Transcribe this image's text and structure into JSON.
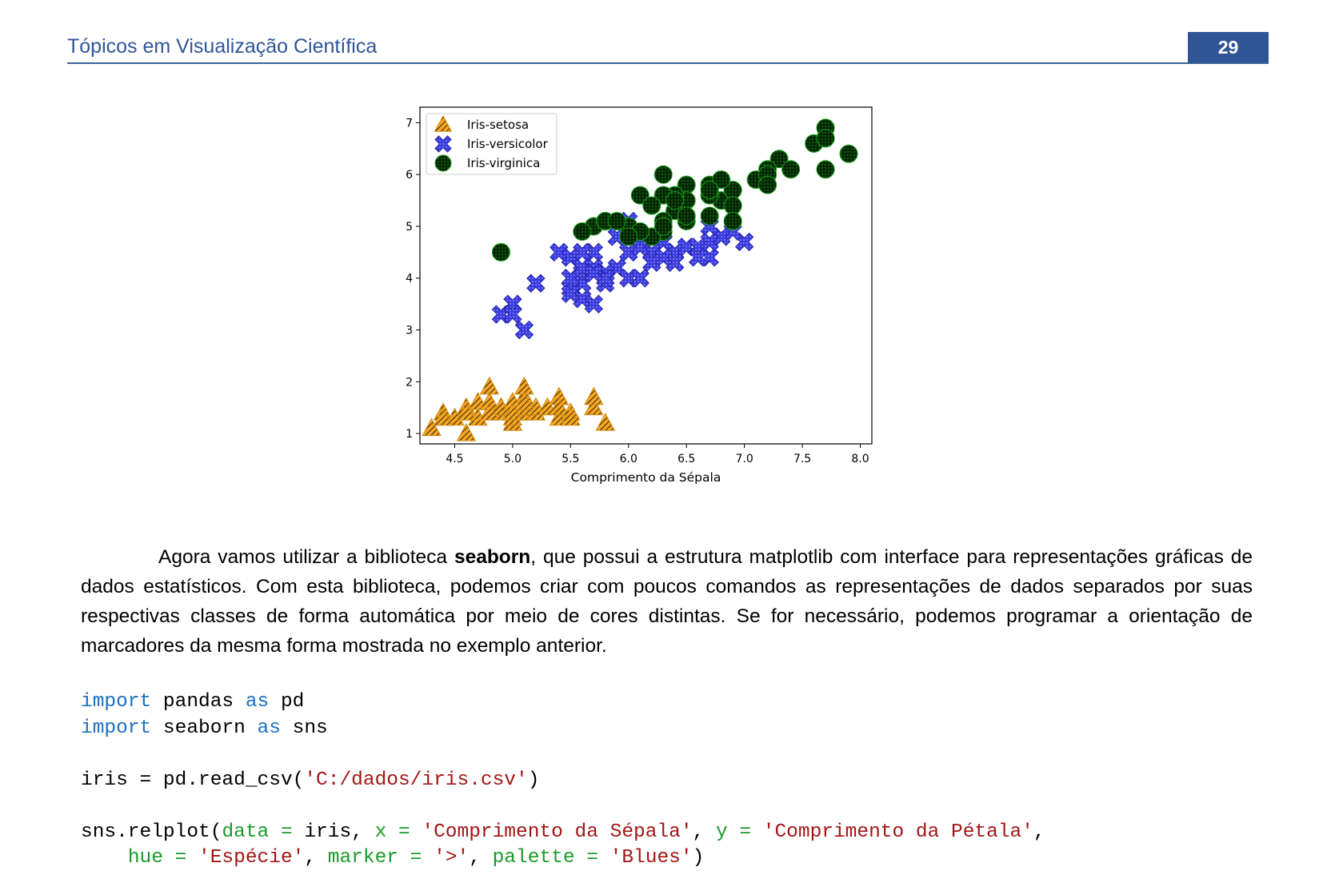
{
  "header": {
    "title": "Tópicos em Visualização Científica",
    "page_number": "29",
    "accent_color": "#2f5597"
  },
  "chart_data": {
    "type": "scatter",
    "xlabel": "Comprimento da Sépala",
    "ylabel": "Comprimento da Pétala",
    "xlim": [
      4.2,
      8.1
    ],
    "ylim": [
      0.8,
      7.3
    ],
    "xticks": [
      "4.5",
      "5.0",
      "5.5",
      "6.0",
      "6.5",
      "7.0",
      "7.5",
      "8.0"
    ],
    "yticks": [
      "1",
      "2",
      "3",
      "4",
      "5",
      "6",
      "7"
    ],
    "grid": false,
    "legend_placement": "upper-left",
    "series": [
      {
        "name": "Iris-setosa",
        "marker": "triangle",
        "color": "#f5a623",
        "points": [
          [
            5.1,
            1.4
          ],
          [
            4.9,
            1.4
          ],
          [
            4.7,
            1.3
          ],
          [
            4.6,
            1.5
          ],
          [
            5.0,
            1.4
          ],
          [
            5.4,
            1.7
          ],
          [
            4.6,
            1.4
          ],
          [
            5.0,
            1.5
          ],
          [
            4.4,
            1.4
          ],
          [
            4.9,
            1.5
          ],
          [
            5.4,
            1.5
          ],
          [
            4.8,
            1.6
          ],
          [
            4.8,
            1.4
          ],
          [
            4.3,
            1.1
          ],
          [
            5.8,
            1.2
          ],
          [
            5.7,
            1.5
          ],
          [
            5.4,
            1.3
          ],
          [
            5.1,
            1.4
          ],
          [
            5.7,
            1.7
          ],
          [
            5.1,
            1.5
          ],
          [
            5.4,
            1.7
          ],
          [
            5.1,
            1.5
          ],
          [
            4.6,
            1.0
          ],
          [
            5.1,
            1.7
          ],
          [
            4.8,
            1.9
          ],
          [
            5.0,
            1.6
          ],
          [
            5.0,
            1.6
          ],
          [
            5.2,
            1.5
          ],
          [
            5.2,
            1.4
          ],
          [
            4.7,
            1.6
          ],
          [
            4.8,
            1.6
          ],
          [
            5.4,
            1.5
          ],
          [
            5.2,
            1.5
          ],
          [
            5.5,
            1.4
          ],
          [
            4.9,
            1.5
          ],
          [
            5.0,
            1.2
          ],
          [
            5.5,
            1.3
          ],
          [
            4.9,
            1.5
          ],
          [
            4.4,
            1.3
          ],
          [
            5.1,
            1.5
          ],
          [
            5.0,
            1.3
          ],
          [
            4.5,
            1.3
          ],
          [
            4.4,
            1.3
          ],
          [
            5.0,
            1.6
          ],
          [
            5.1,
            1.9
          ],
          [
            4.8,
            1.4
          ],
          [
            5.1,
            1.6
          ],
          [
            4.6,
            1.4
          ],
          [
            5.3,
            1.5
          ],
          [
            5.0,
            1.4
          ]
        ]
      },
      {
        "name": "Iris-versicolor",
        "marker": "x",
        "color": "#3a3ae0",
        "points": [
          [
            7.0,
            4.7
          ],
          [
            6.4,
            4.5
          ],
          [
            6.9,
            4.9
          ],
          [
            5.5,
            4.0
          ],
          [
            6.5,
            4.6
          ],
          [
            5.7,
            4.5
          ],
          [
            6.3,
            4.7
          ],
          [
            4.9,
            3.3
          ],
          [
            6.6,
            4.6
          ],
          [
            5.2,
            3.9
          ],
          [
            5.0,
            3.5
          ],
          [
            5.9,
            4.2
          ],
          [
            6.0,
            4.0
          ],
          [
            6.1,
            4.7
          ],
          [
            5.6,
            3.6
          ],
          [
            6.7,
            4.4
          ],
          [
            5.6,
            4.5
          ],
          [
            5.8,
            4.1
          ],
          [
            6.2,
            4.5
          ],
          [
            5.6,
            3.9
          ],
          [
            5.9,
            4.8
          ],
          [
            6.1,
            4.0
          ],
          [
            6.3,
            4.9
          ],
          [
            6.1,
            4.7
          ],
          [
            6.4,
            4.3
          ],
          [
            6.6,
            4.4
          ],
          [
            6.8,
            4.8
          ],
          [
            6.7,
            5.0
          ],
          [
            6.0,
            4.5
          ],
          [
            5.7,
            3.5
          ],
          [
            5.5,
            3.8
          ],
          [
            5.5,
            3.7
          ],
          [
            5.8,
            3.9
          ],
          [
            6.0,
            5.1
          ],
          [
            5.4,
            4.5
          ],
          [
            6.0,
            4.5
          ],
          [
            6.7,
            4.7
          ],
          [
            6.3,
            4.4
          ],
          [
            5.6,
            4.1
          ],
          [
            5.5,
            4.0
          ],
          [
            5.5,
            4.4
          ],
          [
            6.1,
            4.6
          ],
          [
            5.8,
            4.0
          ],
          [
            5.0,
            3.3
          ],
          [
            5.6,
            4.2
          ],
          [
            5.7,
            4.2
          ],
          [
            5.7,
            4.2
          ],
          [
            6.2,
            4.3
          ],
          [
            5.1,
            3.0
          ],
          [
            5.7,
            4.1
          ]
        ]
      },
      {
        "name": "Iris-virginica",
        "marker": "circle",
        "color": "#0a6b0a",
        "points": [
          [
            6.3,
            6.0
          ],
          [
            5.8,
            5.1
          ],
          [
            7.1,
            5.9
          ],
          [
            6.3,
            5.6
          ],
          [
            6.5,
            5.8
          ],
          [
            7.6,
            6.6
          ],
          [
            4.9,
            4.5
          ],
          [
            7.3,
            6.3
          ],
          [
            6.7,
            5.8
          ],
          [
            7.2,
            6.1
          ],
          [
            6.5,
            5.1
          ],
          [
            6.4,
            5.3
          ],
          [
            6.8,
            5.5
          ],
          [
            5.7,
            5.0
          ],
          [
            5.8,
            5.1
          ],
          [
            6.4,
            5.3
          ],
          [
            6.5,
            5.5
          ],
          [
            7.7,
            6.7
          ],
          [
            7.7,
            6.9
          ],
          [
            6.0,
            5.0
          ],
          [
            6.9,
            5.7
          ],
          [
            5.6,
            4.9
          ],
          [
            7.7,
            6.7
          ],
          [
            6.3,
            4.9
          ],
          [
            6.7,
            5.7
          ],
          [
            7.2,
            6.0
          ],
          [
            6.2,
            4.8
          ],
          [
            6.1,
            4.9
          ],
          [
            6.4,
            5.6
          ],
          [
            7.2,
            5.8
          ],
          [
            7.4,
            6.1
          ],
          [
            7.9,
            6.4
          ],
          [
            6.4,
            5.6
          ],
          [
            6.3,
            5.1
          ],
          [
            6.1,
            5.6
          ],
          [
            7.7,
            6.1
          ],
          [
            6.3,
            5.6
          ],
          [
            6.4,
            5.5
          ],
          [
            6.0,
            4.8
          ],
          [
            6.9,
            5.4
          ],
          [
            6.7,
            5.6
          ],
          [
            6.9,
            5.1
          ],
          [
            5.8,
            5.1
          ],
          [
            6.8,
            5.9
          ],
          [
            6.7,
            5.7
          ],
          [
            6.7,
            5.2
          ],
          [
            6.3,
            5.0
          ],
          [
            6.5,
            5.2
          ],
          [
            6.2,
            5.4
          ],
          [
            5.9,
            5.1
          ]
        ]
      }
    ]
  },
  "paragraph": {
    "text_before": "Agora vamos utilizar a biblioteca ",
    "bold": "seaborn",
    "text_after": ", que possui a estrutura matplotlib com interface para representações gráficas de dados estatísticos. Com esta biblioteca, podemos criar com poucos comandos as representações de dados separados por suas respectivas classes de forma automática por meio de cores distintas. Se for necessário, podemos programar a orientação de marcadores da mesma forma mostrada no exemplo anterior."
  },
  "code": {
    "colors": {
      "keyword": "#1c6fc2",
      "string": "#a31515",
      "argument": "#1a9a2a"
    },
    "lines": [
      [
        {
          "t": "import",
          "c": "kw"
        },
        {
          "t": " pandas "
        },
        {
          "t": "as",
          "c": "kw"
        },
        {
          "t": " pd"
        }
      ],
      [
        {
          "t": "import",
          "c": "kw"
        },
        {
          "t": " seaborn "
        },
        {
          "t": "as",
          "c": "kw"
        },
        {
          "t": " sns"
        }
      ],
      [],
      [
        {
          "t": "iris = pd.read_csv("
        },
        {
          "t": "'C:/dados/iris.csv'",
          "c": "str"
        },
        {
          "t": ")"
        }
      ],
      [],
      [
        {
          "t": "sns.relplot("
        },
        {
          "t": "data = ",
          "c": "arg"
        },
        {
          "t": "iris, "
        },
        {
          "t": "x = ",
          "c": "arg"
        },
        {
          "t": "'Comprimento da Sépala'",
          "c": "str"
        },
        {
          "t": ", "
        },
        {
          "t": "y = ",
          "c": "arg"
        },
        {
          "t": "'Comprimento da Pétala'",
          "c": "str"
        },
        {
          "t": ","
        }
      ],
      [
        {
          "t": "    "
        },
        {
          "t": "hue = ",
          "c": "arg"
        },
        {
          "t": "'Espécie'",
          "c": "str"
        },
        {
          "t": ", "
        },
        {
          "t": "marker = ",
          "c": "arg"
        },
        {
          "t": "'>'",
          "c": "str"
        },
        {
          "t": ", "
        },
        {
          "t": "palette = ",
          "c": "arg"
        },
        {
          "t": "'Blues'",
          "c": "str"
        },
        {
          "t": ")"
        }
      ]
    ]
  }
}
